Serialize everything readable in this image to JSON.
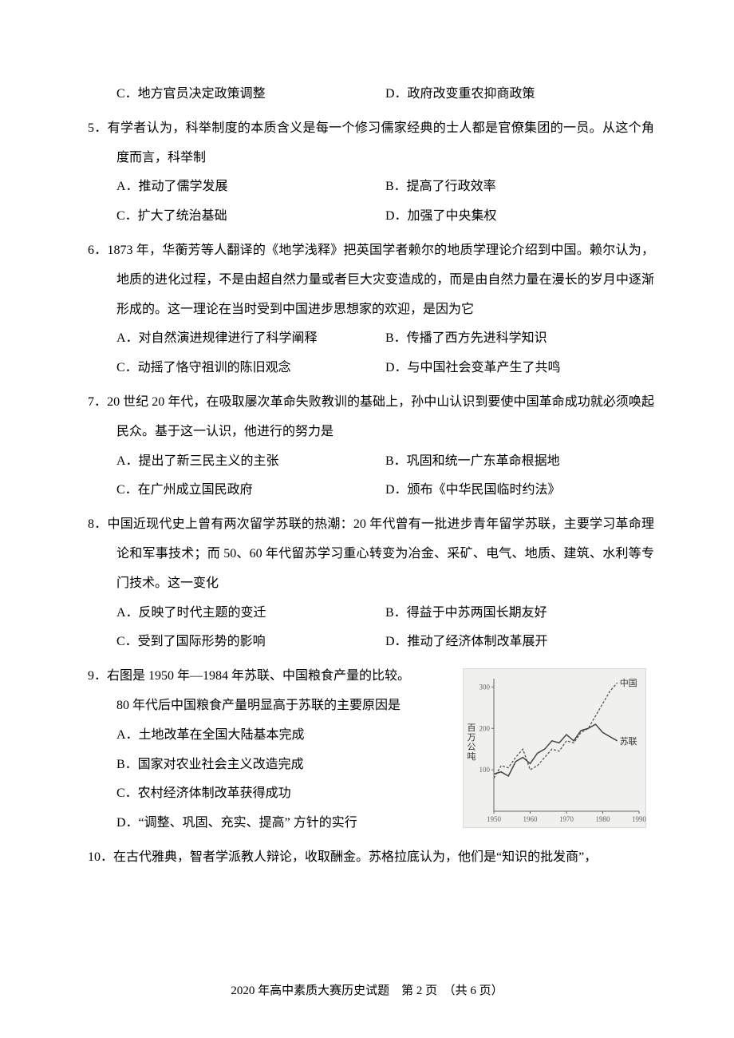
{
  "q_prev_options": {
    "c": "C．地方官员决定政策调整",
    "d": "D．政府改变重农抑商政策"
  },
  "q5": {
    "num": "5．",
    "stem": "有学者认为，科举制度的本质含义是每一个修习儒家经典的士人都是官僚集团的一员。从这个角度而言，科举制",
    "a": "A．推动了儒学发展",
    "b": "B．提高了行政效率",
    "c": "C．扩大了统治基础",
    "d": "D．加强了中央集权"
  },
  "q6": {
    "num": "6．",
    "stem": "1873 年，华蘅芳等人翻译的《地学浅释》把英国学者赖尔的地质学理论介绍到中国。赖尔认为，地质的进化过程，不是由超自然力量或者巨大灾变造成的，而是由自然力量在漫长的岁月中逐渐形成的。这一理论在当时受到中国进步思想家的欢迎，是因为它",
    "a": "A．对自然演进规律进行了科学阐释",
    "b": "B．传播了西方先进科学知识",
    "c": "C．动摇了恪守祖训的陈旧观念",
    "d": "D．与中国社会变革产生了共鸣"
  },
  "q7": {
    "num": "7．",
    "stem": "20 世纪 20 年代，在吸取屡次革命失败教训的基础上，孙中山认识到要使中国革命成功就必须唤起民众。基于这一认识，他进行的努力是",
    "a": "A．提出了新三民主义的主张",
    "b": "B．巩固和统一广东革命根据地",
    "c": "C．在广州成立国民政府",
    "d": "D．颁布《中华民国临时约法》"
  },
  "q8": {
    "num": "8．",
    "stem": "中国近现代史上曾有两次留学苏联的热潮：20 年代曾有一批进步青年留学苏联，主要学习革命理论和军事技术；而 50、60 年代留苏学习重心转变为冶金、采矿、电气、地质、建筑、水利等专门技术。这一变化",
    "a": "A．反映了时代主题的变迁",
    "b": "B．得益于中苏两国长期友好",
    "c": "C．受到了国际形势的影响",
    "d": "D．推动了经济体制改革展开"
  },
  "q9": {
    "num": "9．",
    "stem": "右图是 1950 年—1984 年苏联、中国粮食产量的比较。",
    "stem2": "80 年代后中国粮食产量明显高于苏联的主要原因是",
    "a": "A．土地改革在全国大陆基本完成",
    "b": "B．国家对农业社会主义改造完成",
    "c": "C．农村经济体制改革获得成功",
    "d": "D．“调整、巩固、充实、提高” 方针的实行",
    "chart": {
      "type": "line",
      "background_color": "#f0f0ee",
      "series": [
        {
          "name": "中国",
          "label": "中国",
          "color": "#555555",
          "dash": "3,2",
          "width": 1.3,
          "points": [
            [
              1950,
              80
            ],
            [
              1952,
              110
            ],
            [
              1954,
              105
            ],
            [
              1956,
              130
            ],
            [
              1958,
              150
            ],
            [
              1960,
              100
            ],
            [
              1962,
              110
            ],
            [
              1964,
              130
            ],
            [
              1966,
              150
            ],
            [
              1968,
              145
            ],
            [
              1970,
              170
            ],
            [
              1972,
              165
            ],
            [
              1974,
              190
            ],
            [
              1976,
              200
            ],
            [
              1978,
              230
            ],
            [
              1980,
              260
            ],
            [
              1982,
              290
            ],
            [
              1984,
              310
            ]
          ]
        },
        {
          "name": "苏联",
          "label": "苏联",
          "color": "#444444",
          "dash": "",
          "width": 1.5,
          "points": [
            [
              1950,
              90
            ],
            [
              1952,
              95
            ],
            [
              1954,
              85
            ],
            [
              1956,
              120
            ],
            [
              1958,
              130
            ],
            [
              1960,
              115
            ],
            [
              1962,
              140
            ],
            [
              1964,
              150
            ],
            [
              1966,
              170
            ],
            [
              1968,
              165
            ],
            [
              1970,
              185
            ],
            [
              1972,
              170
            ],
            [
              1974,
              195
            ],
            [
              1976,
              200
            ],
            [
              1978,
              210
            ],
            [
              1980,
              190
            ],
            [
              1982,
              180
            ],
            [
              1984,
              170
            ]
          ]
        }
      ],
      "xlim": [
        1950,
        1990
      ],
      "ylim": [
        0,
        320
      ],
      "xticks": [
        1950,
        1960,
        1970,
        1980,
        1990
      ],
      "yticks": [
        100,
        200,
        300
      ],
      "yaxis_label": "百万公吨",
      "axis_color": "#666666",
      "tick_font_size": 9,
      "label_font_size": 11,
      "grid": false
    }
  },
  "q10": {
    "num": "10．",
    "stem": "在古代雅典，智者学派教人辩论，收取酬金。苏格拉底认为，他们是“知识的批发商”，"
  },
  "footer": "2020 年高中素质大赛历史试题　第 2 页　（共 6 页）"
}
